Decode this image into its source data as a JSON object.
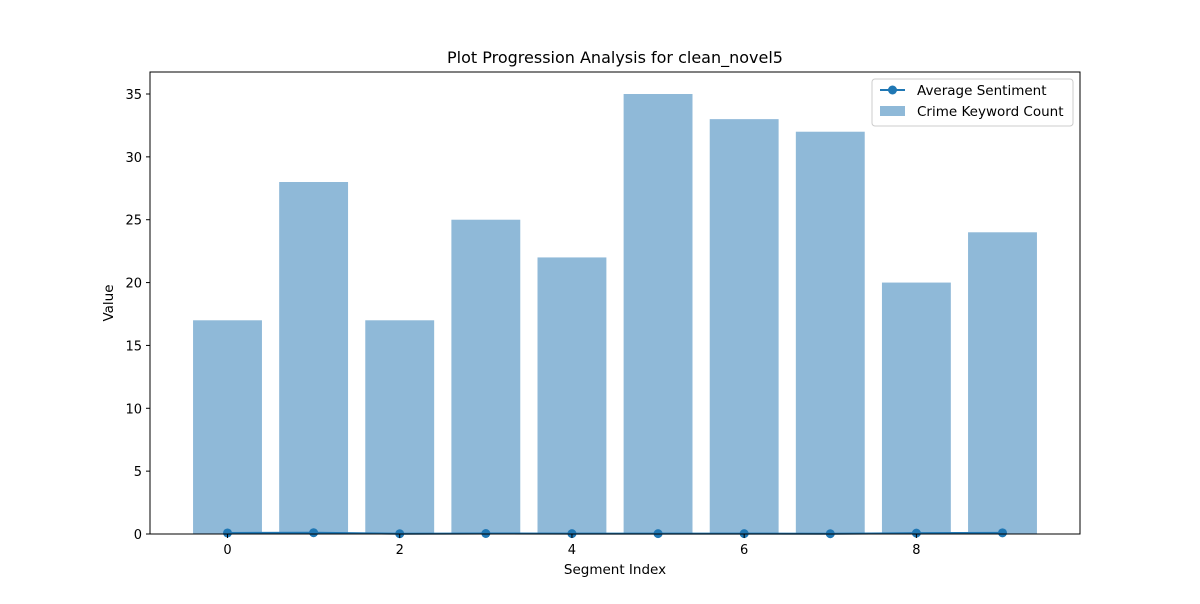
{
  "chart_data": {
    "type": "bar",
    "title": "Plot Progression Analysis for clean_novel5",
    "xlabel": "Segment Index",
    "ylabel": "Value",
    "x": [
      0,
      1,
      2,
      3,
      4,
      5,
      6,
      7,
      8,
      9
    ],
    "xlim": [
      -0.9,
      9.9
    ],
    "ylim": [
      0,
      36.75
    ],
    "xticks": [
      0,
      2,
      4,
      6,
      8
    ],
    "yticks": [
      0,
      5,
      10,
      15,
      20,
      25,
      30,
      35
    ],
    "grid": false,
    "legend_position": "top-right",
    "series": [
      {
        "name": "Average Sentiment",
        "kind": "line",
        "marker": "circle",
        "color": "#1f77b4",
        "values": [
          0.08,
          0.1,
          0.02,
          0.04,
          0.03,
          0.03,
          0.03,
          0.02,
          0.07,
          0.09
        ]
      },
      {
        "name": "Crime Keyword Count",
        "kind": "bar",
        "color": "#8fb9d8",
        "values": [
          17,
          28,
          17,
          25,
          22,
          35,
          33,
          32,
          20,
          24
        ]
      }
    ]
  }
}
